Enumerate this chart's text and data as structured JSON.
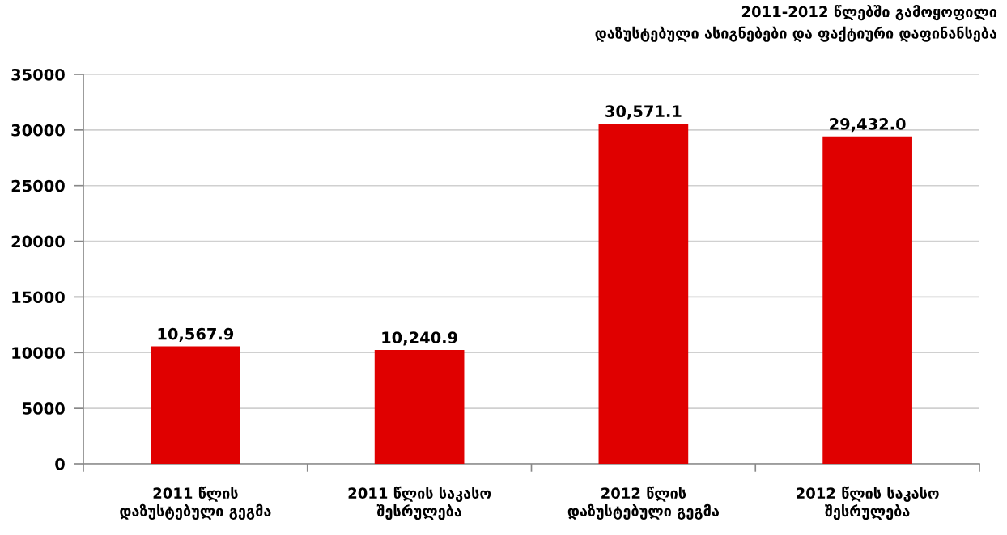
{
  "chart_data": {
    "type": "bar",
    "title": "2011-2012 წლებში გამოყოფილი\nდაზუსტებული ასიგნებები და ფაქტიური დაფინანსება",
    "categories": [
      "2011 წლის\nდაზუსტებული გეგმა",
      "2011 წლის საკასო\nშესრულება",
      "2012 წლის\nდაზუსტებული გეგმა",
      "2012 წლის საკასო\nშესრულება"
    ],
    "values": [
      10567.9,
      10240.9,
      30571.1,
      29432.0
    ],
    "value_labels": [
      "10,567.9",
      "10,240.9",
      "30,571.1",
      "29,432.0"
    ],
    "color": "#e00000",
    "ylim": [
      0,
      35000
    ],
    "yticks": [
      0,
      5000,
      10000,
      15000,
      20000,
      25000,
      30000,
      35000
    ],
    "grid": "y",
    "legend": false
  }
}
